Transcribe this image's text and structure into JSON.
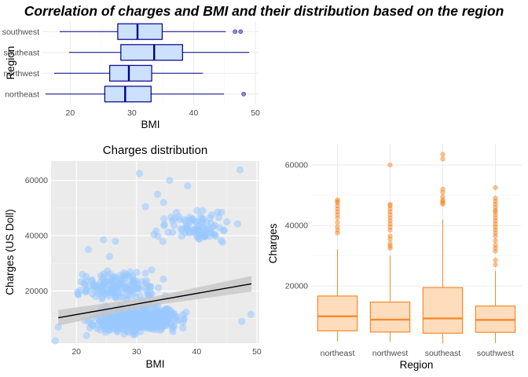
{
  "title": "Correlation of charges and BMI and their distribution based on the region",
  "chart_data": [
    {
      "type": "box",
      "orientation": "horizontal",
      "title": "",
      "xlabel": "BMI",
      "ylabel": "Region",
      "xlim": [
        15.5,
        50.5
      ],
      "xticks": [
        20,
        30,
        40,
        50
      ],
      "categories": [
        "northeast",
        "northwest",
        "southeast",
        "southwest"
      ],
      "boxes": [
        {
          "name": "northeast",
          "whisker_low": 16,
          "q1": 25.6,
          "median": 28.9,
          "q3": 33.1,
          "whisker_high": 44.9,
          "outliers": [
            48.1
          ]
        },
        {
          "name": "northwest",
          "whisker_low": 17.4,
          "q1": 26.4,
          "median": 29.5,
          "q3": 33.2,
          "whisker_high": 41.5,
          "outliers": []
        },
        {
          "name": "southeast",
          "whisker_low": 19.8,
          "q1": 28.2,
          "median": 33.6,
          "q3": 38.2,
          "whisker_high": 49.0,
          "outliers": []
        },
        {
          "name": "southwest",
          "whisker_low": 18.3,
          "q1": 27.7,
          "median": 30.9,
          "q3": 34.9,
          "whisker_high": 45.2,
          "outliers": [
            46.7,
            47.6
          ]
        }
      ],
      "colors": {
        "fill": "#cce0ff",
        "stroke": "#00008b",
        "outlier": "#3344aa"
      },
      "grid": true
    },
    {
      "type": "scatter",
      "title": "Charges distribution",
      "xlabel": "BMI",
      "ylabel": "Charges (US Doll)",
      "xlim": [
        15.8,
        50.4
      ],
      "ylim": [
        1100,
        67000
      ],
      "xticks": [
        20,
        30,
        40,
        50
      ],
      "yticks": [
        20000,
        40000,
        60000
      ],
      "trend_line": {
        "x": [
          17,
          49.1
        ],
        "y": [
          10300,
          22600
        ]
      },
      "clusters": [
        {
          "x": [
            20,
            40
          ],
          "y": [
            3000,
            16000
          ],
          "n": 430
        },
        {
          "x": [
            18,
            38
          ],
          "y": [
            14000,
            30000
          ],
          "n": 110
        },
        {
          "x": [
            30,
            48
          ],
          "y": [
            36000,
            50000
          ],
          "n": 85
        },
        {
          "x": [
            19,
            30
          ],
          "y": [
            14000,
            28000
          ],
          "n": 45
        }
      ],
      "points": [
        [
          30.5,
          62500
        ],
        [
          35.5,
          60000
        ],
        [
          47.2,
          63800
        ],
        [
          33.5,
          55000
        ],
        [
          38.5,
          58000
        ],
        [
          34.5,
          52000
        ],
        [
          44.5,
          42000
        ],
        [
          25.5,
          32500
        ],
        [
          22,
          35000
        ],
        [
          43.5,
          48500
        ],
        [
          41,
          49000
        ],
        [
          42.5,
          47500
        ],
        [
          17,
          7000
        ],
        [
          16.5,
          2000
        ],
        [
          49,
          11500
        ],
        [
          47.5,
          9000
        ],
        [
          26.5,
          38000
        ],
        [
          24.5,
          38500
        ],
        [
          21,
          26000
        ],
        [
          40,
          45000
        ],
        [
          45,
          45000
        ],
        [
          31.5,
          50500
        ]
      ],
      "colors": {
        "point": "#99c8ff",
        "line": "#000000",
        "band": "#c4c4c4",
        "panel": "#ebebeb"
      },
      "grid": true
    },
    {
      "type": "box",
      "orientation": "vertical",
      "title": "",
      "xlabel": "Region",
      "ylabel": "Charges",
      "ylim": [
        1100,
        67000
      ],
      "yticks": [
        20000,
        40000,
        60000
      ],
      "categories": [
        "northeast",
        "northwest",
        "southeast",
        "southwest"
      ],
      "boxes": [
        {
          "name": "northeast",
          "whisker_low": 1700,
          "q1": 5200,
          "median": 10000,
          "q3": 16700,
          "whisker_high": 32100,
          "outliers": [
            37500,
            38500,
            39500,
            41000,
            42500,
            43500,
            44500,
            45500,
            46500,
            47500,
            48000,
            48500
          ]
        },
        {
          "name": "northwest",
          "whisker_low": 1600,
          "q1": 4800,
          "median": 8900,
          "q3": 14700,
          "whisker_high": 30000,
          "outliers": [
            32500,
            33200,
            34000,
            35500,
            36500,
            38500,
            39500,
            40500,
            41500,
            42500,
            43500,
            44500,
            45500,
            46500,
            47000,
            60000
          ]
        },
        {
          "name": "southeast",
          "whisker_low": 1100,
          "q1": 4400,
          "median": 9300,
          "q3": 19500,
          "whisker_high": 42000,
          "outliers": [
            47000,
            47500,
            48000,
            48500,
            49500,
            51000,
            52000,
            62000,
            63500
          ]
        },
        {
          "name": "southwest",
          "whisker_low": 1200,
          "q1": 4700,
          "median": 8800,
          "q3": 13400,
          "whisker_high": 25000,
          "outliers": [
            27000,
            28500,
            31500,
            32500,
            33500,
            35000,
            36500,
            37500,
            38500,
            39500,
            40500,
            41500,
            42500,
            43500,
            44500,
            45000,
            46000,
            47000,
            48000,
            49000,
            52500
          ]
        }
      ],
      "colors": {
        "fill": "#ffdcbc",
        "stroke": "#f58a2c",
        "outlier": "#f58a2c"
      },
      "grid": true
    }
  ]
}
